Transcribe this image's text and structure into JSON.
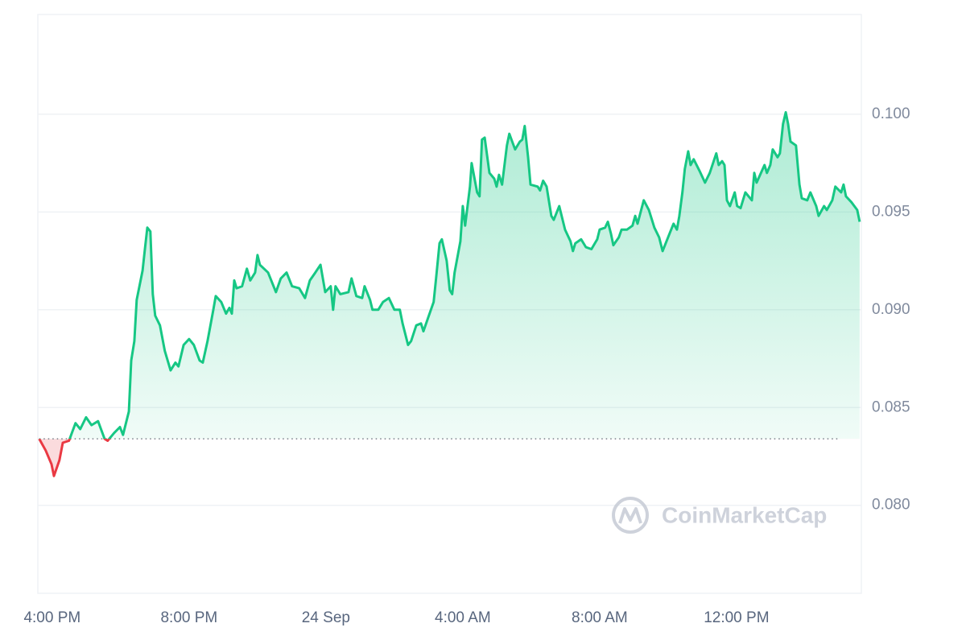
{
  "chart_data": {
    "type": "line",
    "watermark": "CoinMarketCap",
    "baseline": 0.0834,
    "colors": {
      "up": "#16c784",
      "down": "#ea3943"
    },
    "grid": true,
    "xlim": [
      -0.42,
      23.65
    ],
    "xticks": [
      {
        "value": 0,
        "label": "4:00 PM"
      },
      {
        "value": 4,
        "label": "8:00 PM"
      },
      {
        "value": 8,
        "label": "24 Sep"
      },
      {
        "value": 12,
        "label": "4:00 AM"
      },
      {
        "value": 16,
        "label": "8:00 AM"
      },
      {
        "value": 20,
        "label": "12:00 PM"
      }
    ],
    "ylim": [
      0.0755,
      0.1051
    ],
    "yticks": [
      {
        "value": 0.08,
        "label": "0.080"
      },
      0.085,
      {
        "value": 0.09,
        "label": "0.090"
      },
      0.095,
      {
        "value": 0.1,
        "label": "0.100"
      }
    ],
    "x": [
      -0.38,
      -0.19,
      -0.02,
      0.05,
      0.21,
      0.31,
      0.49,
      0.68,
      0.82,
      0.99,
      1.15,
      1.34,
      1.53,
      1.62,
      1.81,
      1.98,
      2.07,
      2.24,
      2.31,
      2.4,
      2.47,
      2.64,
      2.71,
      2.78,
      2.87,
      2.94,
      3.01,
      3.15,
      3.29,
      3.46,
      3.6,
      3.69,
      3.84,
      4.0,
      4.14,
      4.31,
      4.4,
      4.54,
      4.71,
      4.78,
      4.94,
      5.08,
      5.18,
      5.25,
      5.32,
      5.39,
      5.55,
      5.69,
      5.79,
      5.93,
      6.0,
      6.07,
      6.31,
      6.54,
      6.68,
      6.85,
      7.01,
      7.22,
      7.39,
      7.53,
      7.69,
      7.84,
      7.98,
      8.14,
      8.21,
      8.28,
      8.42,
      8.66,
      8.75,
      8.89,
      9.06,
      9.13,
      9.29,
      9.36,
      9.53,
      9.67,
      9.84,
      10.0,
      10.16,
      10.24,
      10.4,
      10.49,
      10.64,
      10.78,
      10.85,
      10.99,
      11.15,
      11.22,
      11.32,
      11.39,
      11.53,
      11.62,
      11.69,
      11.76,
      11.93,
      12.0,
      12.07,
      12.21,
      12.26,
      12.42,
      12.49,
      12.56,
      12.64,
      12.78,
      12.92,
      12.99,
      13.06,
      13.15,
      13.22,
      13.29,
      13.36,
      13.53,
      13.67,
      13.74,
      13.81,
      13.91,
      13.98,
      14.19,
      14.26,
      14.35,
      14.45,
      14.59,
      14.66,
      14.82,
      14.99,
      15.15,
      15.22,
      15.29,
      15.46,
      15.6,
      15.76,
      15.93,
      16.0,
      16.16,
      16.24,
      16.33,
      16.4,
      16.56,
      16.64,
      16.8,
      16.96,
      17.04,
      17.11,
      17.29,
      17.44,
      17.6,
      17.74,
      17.84,
      18.07,
      18.16,
      18.26,
      18.33,
      18.42,
      18.49,
      18.59,
      18.66,
      18.75,
      18.92,
      19.08,
      19.22,
      19.41,
      19.48,
      19.58,
      19.65,
      19.72,
      19.81,
      19.95,
      20.02,
      20.12,
      20.26,
      20.45,
      20.52,
      20.59,
      20.82,
      20.89,
      20.99,
      21.06,
      21.2,
      21.27,
      21.36,
      21.44,
      21.51,
      21.58,
      21.74,
      21.84,
      21.91,
      22.07,
      22.16,
      22.33,
      22.4,
      22.56,
      22.64,
      22.8,
      22.89,
      23.06,
      23.13,
      23.2,
      23.36,
      23.53,
      23.6
    ],
    "values": [
      0.0834,
      0.0828,
      0.0821,
      0.0815,
      0.0823,
      0.0832,
      0.0833,
      0.0842,
      0.0839,
      0.0845,
      0.0841,
      0.0843,
      0.0834,
      0.0833,
      0.0837,
      0.084,
      0.0836,
      0.0848,
      0.0874,
      0.0884,
      0.0905,
      0.092,
      0.0931,
      0.0942,
      0.094,
      0.0908,
      0.0897,
      0.0892,
      0.0879,
      0.0869,
      0.0873,
      0.0871,
      0.0882,
      0.0885,
      0.0882,
      0.0874,
      0.0873,
      0.0884,
      0.09,
      0.0907,
      0.0904,
      0.0898,
      0.0901,
      0.0898,
      0.0915,
      0.0911,
      0.0912,
      0.0921,
      0.0915,
      0.0919,
      0.0928,
      0.0923,
      0.0919,
      0.0909,
      0.0916,
      0.0919,
      0.0912,
      0.0911,
      0.0906,
      0.0915,
      0.0919,
      0.0923,
      0.0909,
      0.0912,
      0.09,
      0.0912,
      0.0908,
      0.0909,
      0.0916,
      0.0907,
      0.0906,
      0.0912,
      0.0905,
      0.09,
      0.09,
      0.0904,
      0.0906,
      0.09,
      0.09,
      0.0893,
      0.0882,
      0.0884,
      0.0892,
      0.0893,
      0.0889,
      0.0896,
      0.0904,
      0.0916,
      0.0934,
      0.0936,
      0.0925,
      0.091,
      0.0908,
      0.0919,
      0.0935,
      0.0953,
      0.0943,
      0.0963,
      0.0975,
      0.096,
      0.0958,
      0.0987,
      0.0988,
      0.097,
      0.0967,
      0.0963,
      0.0969,
      0.0964,
      0.0974,
      0.0984,
      0.099,
      0.0982,
      0.0986,
      0.0987,
      0.0994,
      0.0978,
      0.0964,
      0.0963,
      0.0961,
      0.0966,
      0.0963,
      0.0948,
      0.0946,
      0.0953,
      0.0941,
      0.0935,
      0.093,
      0.0934,
      0.0936,
      0.0932,
      0.0931,
      0.0936,
      0.0941,
      0.0942,
      0.0945,
      0.0939,
      0.0933,
      0.0937,
      0.0941,
      0.0941,
      0.0943,
      0.0948,
      0.0944,
      0.0956,
      0.0951,
      0.0942,
      0.0937,
      0.093,
      0.094,
      0.0944,
      0.0941,
      0.0948,
      0.096,
      0.0972,
      0.0981,
      0.0974,
      0.0977,
      0.0971,
      0.0965,
      0.097,
      0.098,
      0.0974,
      0.0976,
      0.0974,
      0.0956,
      0.0953,
      0.096,
      0.0953,
      0.0952,
      0.096,
      0.0956,
      0.097,
      0.0965,
      0.0974,
      0.097,
      0.0974,
      0.0982,
      0.0978,
      0.098,
      0.0995,
      0.1001,
      0.0995,
      0.0986,
      0.0984,
      0.0964,
      0.0957,
      0.0956,
      0.096,
      0.0953,
      0.0948,
      0.0953,
      0.0951,
      0.0956,
      0.0963,
      0.096,
      0.0964,
      0.0958,
      0.0955,
      0.0951,
      0.0945
    ]
  }
}
